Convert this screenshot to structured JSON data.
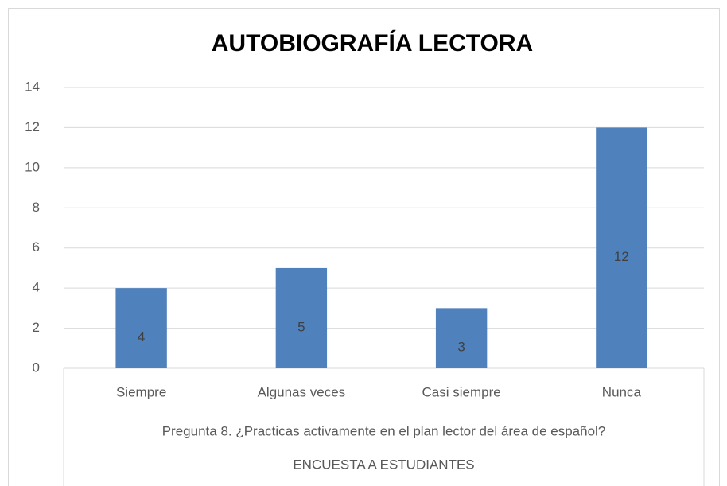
{
  "chart_data": {
    "type": "bar",
    "title": "AUTOBIOGRAFÍA LECTORA",
    "categories": [
      "Siempre",
      "Algunas veces",
      "Casi siempre",
      "Nunca"
    ],
    "values": [
      4,
      5,
      3,
      12
    ],
    "color": "#4f81bd",
    "ylim": [
      0,
      14
    ],
    "yticks": [
      0,
      2,
      4,
      6,
      8,
      10,
      12,
      14
    ],
    "grid": true,
    "x_axis_groups": [
      "Pregunta 8. ¿Practicas activamente en el plan lector del área de español?",
      "ENCUESTA A ESTUDIANTES"
    ]
  }
}
